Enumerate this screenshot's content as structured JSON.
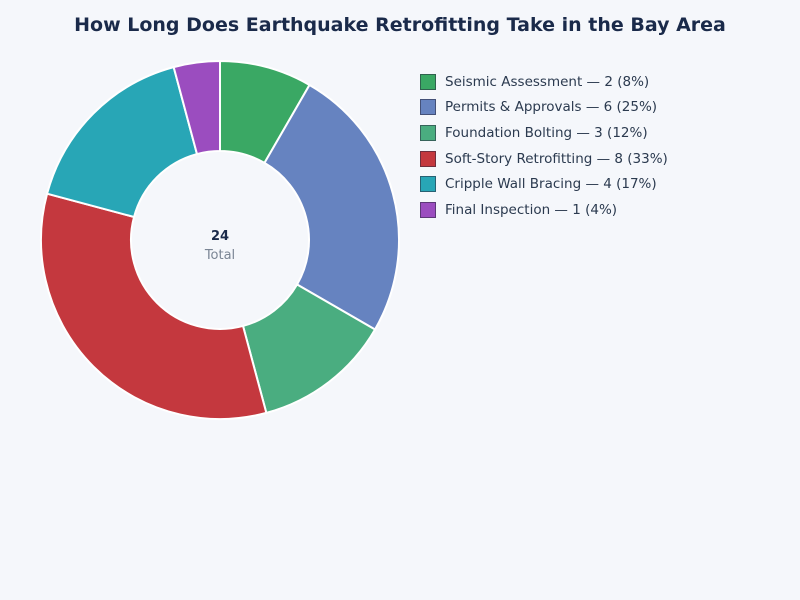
{
  "chart_data": {
    "type": "pie",
    "title": "How Long Does Earthquake Retrofitting Take in the Bay Area",
    "center_value": "24",
    "center_label": "Total",
    "legend_position": "right",
    "slices": [
      {
        "label": "Seismic Assessment",
        "value": 2,
        "percent": "8%",
        "legend": "Seismic Assessment — 2 (8%)",
        "color": "#3aa864"
      },
      {
        "label": "Permits & Approvals",
        "value": 6,
        "percent": "25%",
        "legend": "Permits & Approvals — 6 (25%)",
        "color": "#6683c0"
      },
      {
        "label": "Foundation Bolting",
        "value": 3,
        "percent": "12%",
        "legend": "Foundation Bolting — 3 (12%)",
        "color": "#4aad80"
      },
      {
        "label": "Soft-Story Retrofitting",
        "value": 8,
        "percent": "33%",
        "legend": "Soft-Story Retrofitting — 8 (33%)",
        "color": "#c4383e"
      },
      {
        "label": "Cripple Wall Bracing",
        "value": 4,
        "percent": "17%",
        "legend": "Cripple Wall Bracing — 4 (17%)",
        "color": "#28a6b6"
      },
      {
        "label": "Final Inspection",
        "value": 1,
        "percent": "4%",
        "legend": "Final Inspection — 1 (4%)",
        "color": "#9b4dbf"
      }
    ]
  }
}
